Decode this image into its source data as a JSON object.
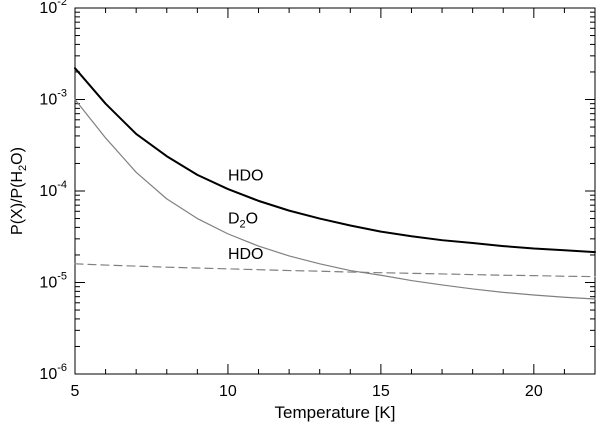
{
  "chart_data": {
    "type": "line",
    "xlabel": "Temperature [K]",
    "ylabel": {
      "prefix": "P(X)/P(H",
      "sub": "2",
      "suffix": "O)"
    },
    "xlim": [
      5,
      22
    ],
    "ylim": [
      1e-06,
      0.01
    ],
    "yscale": "log",
    "grid": false,
    "x_ticks": [
      5,
      10,
      15,
      20
    ],
    "y_ticks": [
      {
        "value": 1e-06,
        "base": "10",
        "exp": "-6"
      },
      {
        "value": 1e-05,
        "base": "10",
        "exp": "-5"
      },
      {
        "value": 0.0001,
        "base": "10",
        "exp": "-4"
      },
      {
        "value": 0.001,
        "base": "10",
        "exp": "-3"
      },
      {
        "value": 0.01,
        "base": "10",
        "exp": "-2"
      }
    ],
    "series": [
      {
        "name": "HDO",
        "style": "solid-thick",
        "color": "#000000",
        "x": [
          5,
          6,
          7,
          8,
          9,
          10,
          11,
          12,
          13,
          14,
          15,
          16,
          17,
          18,
          19,
          20,
          21,
          22
        ],
        "y": [
          0.0022,
          0.0009,
          0.00042,
          0.00024,
          0.00015,
          0.000105,
          7.8e-05,
          6.1e-05,
          5e-05,
          4.2e-05,
          3.6e-05,
          3.2e-05,
          2.9e-05,
          2.7e-05,
          2.5e-05,
          2.35e-05,
          2.25e-05,
          2.15e-05
        ]
      },
      {
        "name": "D2O",
        "label_parts": {
          "prefix": "D",
          "sub": "2",
          "suffix": "O"
        },
        "style": "solid-thin",
        "color": "#808080",
        "x": [
          5,
          6,
          7,
          8,
          9,
          10,
          11,
          12,
          13,
          14,
          15,
          16,
          17,
          18,
          19,
          20,
          21,
          22
        ],
        "y": [
          0.001,
          0.00038,
          0.00016,
          8.2e-05,
          5e-05,
          3.4e-05,
          2.5e-05,
          1.95e-05,
          1.6e-05,
          1.35e-05,
          1.2e-05,
          1.05e-05,
          9.4e-06,
          8.5e-06,
          7.8e-06,
          7.3e-06,
          6.9e-06,
          6.6e-06
        ]
      },
      {
        "name": "HDO",
        "style": "dashed",
        "color": "#808080",
        "x": [
          5,
          6,
          7,
          8,
          9,
          10,
          11,
          12,
          13,
          14,
          15,
          16,
          17,
          18,
          19,
          20,
          21,
          22
        ],
        "y": [
          1.6e-05,
          1.55e-05,
          1.51e-05,
          1.47e-05,
          1.44e-05,
          1.41e-05,
          1.38e-05,
          1.35e-05,
          1.33e-05,
          1.3e-05,
          1.28e-05,
          1.26e-05,
          1.24e-05,
          1.22e-05,
          1.2e-05,
          1.19e-05,
          1.17e-05,
          1.16e-05
        ]
      }
    ],
    "annotations": [
      {
        "text": "HDO",
        "series": 0,
        "x": 10,
        "y": 0.00013
      },
      {
        "text_parts": {
          "prefix": "D",
          "sub": "2",
          "suffix": "O"
        },
        "series": 1,
        "x": 10,
        "y": 4.4e-05
      },
      {
        "text": "HDO",
        "series": 2,
        "x": 10,
        "y": 1.8e-05
      }
    ]
  }
}
